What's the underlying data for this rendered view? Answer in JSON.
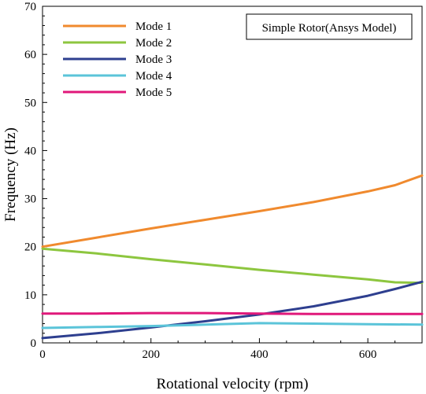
{
  "chart_data": {
    "type": "line",
    "title": "Simple Rotor(Ansys Model)",
    "xlabel": "Rotational velocity (rpm)",
    "ylabel": "Frequency (Hz)",
    "xlim": [
      0,
      700
    ],
    "ylim": [
      0,
      70
    ],
    "xticks": [
      0,
      200,
      400,
      600
    ],
    "yticks": [
      0,
      10,
      20,
      30,
      40,
      50,
      60,
      70
    ],
    "grid": false,
    "legend_position": "top-left",
    "series": [
      {
        "name": "Mode 1",
        "color": "#F08A2E",
        "x": [
          0,
          100,
          200,
          300,
          400,
          500,
          600,
          650,
          700
        ],
        "y": [
          20.0,
          21.9,
          23.8,
          25.6,
          27.4,
          29.3,
          31.5,
          32.8,
          34.8
        ]
      },
      {
        "name": "Mode 2",
        "color": "#8DC63F",
        "x": [
          0,
          100,
          200,
          300,
          400,
          500,
          600,
          650,
          700
        ],
        "y": [
          19.6,
          18.6,
          17.4,
          16.3,
          15.2,
          14.2,
          13.2,
          12.6,
          12.5
        ]
      },
      {
        "name": "Mode 3",
        "color": "#2E3F8F",
        "x": [
          0,
          100,
          200,
          300,
          400,
          500,
          600,
          650,
          700
        ],
        "y": [
          1.0,
          2.0,
          3.2,
          4.5,
          5.9,
          7.6,
          9.8,
          11.2,
          12.7
        ]
      },
      {
        "name": "Mode 4",
        "color": "#5BC4D9",
        "x": [
          0,
          100,
          200,
          300,
          400,
          500,
          600,
          700
        ],
        "y": [
          3.1,
          3.3,
          3.5,
          3.8,
          4.1,
          4.0,
          3.9,
          3.8
        ]
      },
      {
        "name": "Mode 5",
        "color": "#E0187A",
        "x": [
          0,
          100,
          200,
          300,
          400,
          500,
          600,
          700
        ],
        "y": [
          6.1,
          6.1,
          6.2,
          6.2,
          6.1,
          6.0,
          6.0,
          6.0
        ]
      }
    ]
  }
}
